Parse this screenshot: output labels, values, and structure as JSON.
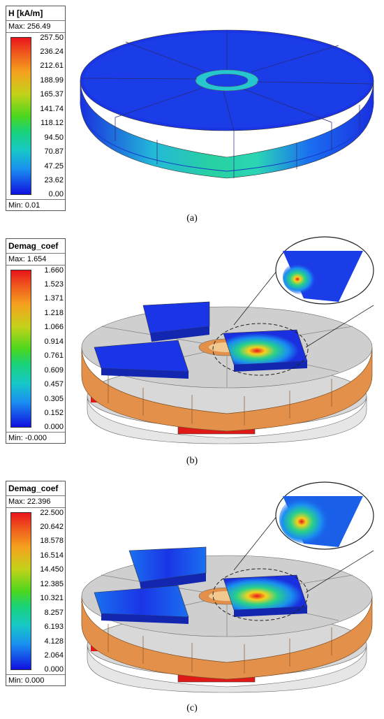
{
  "panels": [
    {
      "caption": "(a)",
      "legend_title": "H [kA/m]",
      "max_label": "Max: 256.49",
      "min_label": "Min: 0.01",
      "scale": [
        "257.50",
        "236.24",
        "212.61",
        "188.99",
        "165.37",
        "141.74",
        "118.12",
        "94.50",
        "70.87",
        "47.25",
        "23.62",
        "0.00"
      ]
    },
    {
      "caption": "(b)",
      "legend_title": "Demag_coef",
      "max_label": "Max: 1.654",
      "min_label": "Min: -0.000",
      "scale": [
        "1.660",
        "1.523",
        "1.371",
        "1.218",
        "1.066",
        "0.914",
        "0.761",
        "0.609",
        "0.457",
        "0.305",
        "0.152",
        "0.000"
      ]
    },
    {
      "caption": "(c)",
      "legend_title": "Demag_coef",
      "max_label": "Max: 22.396",
      "min_label": "Min: 0.000",
      "scale": [
        "22.500",
        "20.642",
        "18.578",
        "16.514",
        "14.450",
        "12.385",
        "10.321",
        "8.257",
        "6.193",
        "4.128",
        "2.064",
        "0.000"
      ]
    }
  ],
  "colors": {
    "scale_top": "#e8141b",
    "scale_bottom": "#1010e0",
    "magnet_blue": "#1a2fe0",
    "copper": "#e3914a",
    "grey": "#c8c8c8"
  }
}
